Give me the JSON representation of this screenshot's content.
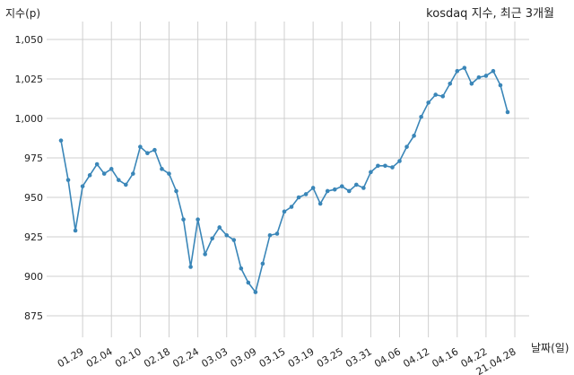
{
  "chart_data": {
    "type": "line",
    "title": "kosdaq 지수, 최근 3개월",
    "xlabel": "날짜(일)",
    "ylabel": "지수(p)",
    "ylim": [
      860,
      1060
    ],
    "yticks": [
      875,
      900,
      925,
      950,
      975,
      1000,
      1025,
      1050
    ],
    "ytick_labels": [
      "875",
      "900",
      "925",
      "950",
      "975",
      "1,000",
      "1,025",
      "1,050"
    ],
    "xtick_labels": [
      "01.29",
      "02.04",
      "02.10",
      "02.18",
      "02.24",
      "03.03",
      "03.09",
      "03.15",
      "03.19",
      "03.25",
      "03.31",
      "04.06",
      "04.12",
      "04.16",
      "04.22",
      "21.04.28"
    ],
    "xtick_index": [
      4,
      8,
      12,
      16,
      20,
      24,
      28,
      32,
      36,
      40,
      44,
      48,
      52,
      56,
      60,
      64
    ],
    "grid": true,
    "series": [
      {
        "values": [
          986,
          961,
          929,
          957,
          964,
          971,
          965,
          968,
          961,
          958,
          965,
          982,
          978,
          980,
          968,
          965,
          954,
          936,
          906,
          936,
          914,
          924,
          931,
          926,
          923,
          905,
          896,
          890,
          908,
          926,
          927,
          941,
          944,
          950,
          952,
          956,
          946,
          954,
          955,
          957,
          954,
          958,
          956,
          966,
          970,
          970,
          969,
          973,
          982,
          989,
          1001,
          1010,
          1015,
          1014,
          1022,
          1030,
          1032,
          1022,
          1026,
          1027,
          1030,
          1021,
          1004
        ]
      }
    ]
  }
}
